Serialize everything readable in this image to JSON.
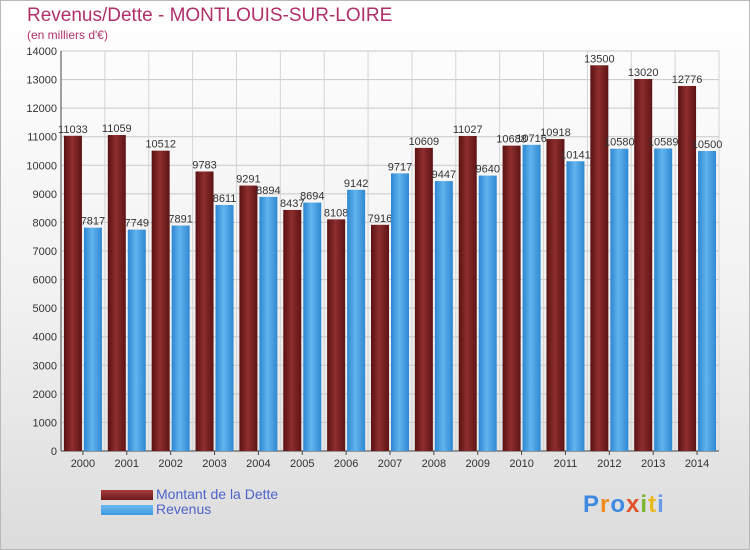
{
  "title": "Revenus/Dette - MONTLOUIS-SUR-LOIRE",
  "subtitle": "(en milliers d'€)",
  "logo": {
    "text": "Proxiti",
    "colors": [
      "#3f8ae0",
      "#f08a1c",
      "#3f8ae0",
      "#e0522a",
      "#7ab52e",
      "#e8b91a",
      "#6a9be8"
    ]
  },
  "colors": {
    "dette": "#6b1a1a",
    "revenus": "#3d9ae0"
  },
  "legend": [
    {
      "label": "Montant de la Dette",
      "color": "#6b1a1a"
    },
    {
      "label": "Revenus",
      "color": "#3d9ae0"
    }
  ],
  "chart_data": {
    "type": "bar",
    "categories": [
      "2000",
      "2001",
      "2002",
      "2003",
      "2004",
      "2005",
      "2006",
      "2007",
      "2008",
      "2009",
      "2010",
      "2011",
      "2012",
      "2013",
      "2014"
    ],
    "series": [
      {
        "name": "Montant de la Dette",
        "values": [
          11033,
          11059,
          10512,
          9783,
          9291,
          8437,
          8108,
          7916,
          10609,
          11027,
          10688,
          10918,
          13500,
          13020,
          12776
        ]
      },
      {
        "name": "Revenus",
        "values": [
          7817,
          7749,
          7891,
          8611,
          8894,
          8694,
          9142,
          9717,
          9447,
          9640,
          10716,
          10141,
          10580,
          10589,
          10500
        ]
      }
    ],
    "data_labels": [
      [
        "11033",
        "11059",
        "10512",
        "9783",
        "9291",
        "8437",
        "8108",
        "7916",
        "10609",
        "11027",
        "10688",
        "10918",
        "13500",
        "13020",
        "12776"
      ],
      [
        "7817",
        "7749",
        "7891",
        "8611",
        "8894",
        "8694",
        "9142",
        "9717",
        "9447",
        "9640",
        "10716",
        "10141",
        "10580",
        "10589",
        "10500"
      ]
    ],
    "ylim": [
      0,
      14000
    ],
    "yticks": [
      0,
      1000,
      2000,
      3000,
      4000,
      5000,
      6000,
      7000,
      8000,
      9000,
      10000,
      11000,
      12000,
      13000,
      14000
    ],
    "grid": true,
    "legend_position": "bottom-left"
  }
}
